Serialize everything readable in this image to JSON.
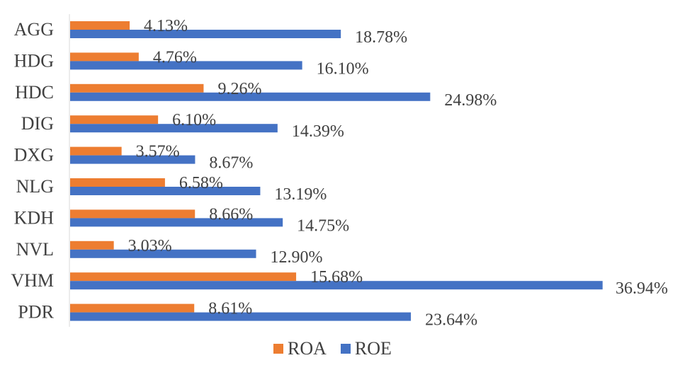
{
  "chart_data": {
    "type": "bar",
    "orientation": "horizontal",
    "categories": [
      "AGG",
      "HDG",
      "HDC",
      "DIG",
      "DXG",
      "NLG",
      "KDH",
      "NVL",
      "VHM",
      "PDR"
    ],
    "series": [
      {
        "name": "ROA",
        "color": "#ED7D31",
        "values": [
          4.13,
          4.76,
          9.26,
          6.1,
          3.57,
          6.58,
          8.66,
          3.03,
          15.68,
          8.61
        ],
        "labels": [
          "4.13%",
          "4.76%",
          "9.26%",
          "6.10%",
          "3.57%",
          "6.58%",
          "8.66%",
          "3.03%",
          "15.68%",
          "8.61%"
        ]
      },
      {
        "name": "ROE",
        "color": "#4472C4",
        "values": [
          18.78,
          16.1,
          24.98,
          14.39,
          8.67,
          13.19,
          14.75,
          12.9,
          36.94,
          23.64
        ],
        "labels": [
          "18.78%",
          "16.10%",
          "24.98%",
          "14.39%",
          "8.67%",
          "13.19%",
          "14.75%",
          "12.90%",
          "36.94%",
          "23.64%"
        ]
      }
    ],
    "xlim": [
      0,
      37
    ],
    "unit": "%",
    "grid": false,
    "legend_position": "bottom"
  },
  "legend": {
    "roa_label": "ROA",
    "roe_label": "ROE"
  }
}
